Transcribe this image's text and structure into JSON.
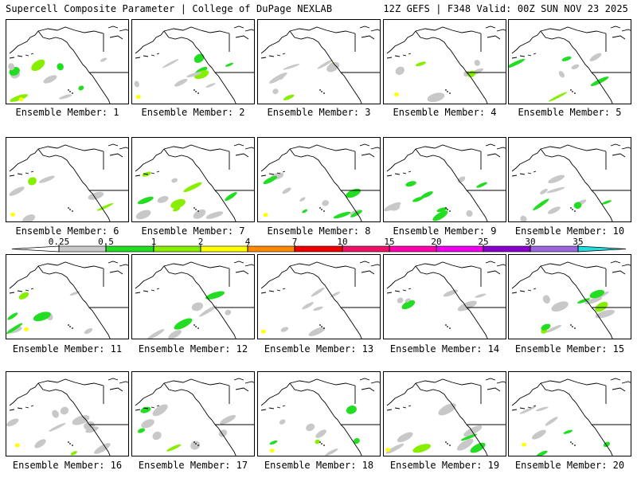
{
  "header": {
    "left_title": "Supercell Composite Parameter | College of DuPage NEXLAB",
    "right_title": "12Z GEFS | F348 Valid: 00Z SUN NOV 23 2025"
  },
  "colorbar": {
    "ticks": [
      "0.25",
      "0.5",
      "1",
      "2",
      "4",
      "7",
      "10",
      "15",
      "20",
      "25",
      "30",
      "35"
    ],
    "colors": [
      "#c8c8c8",
      "#22dd22",
      "#88ee00",
      "#ffff00",
      "#ff8800",
      "#ee0000",
      "#ee1166",
      "#ff00aa",
      "#ee00ee",
      "#8800cc",
      "#9966dd",
      "#22dddd"
    ]
  },
  "members": [
    {
      "label": "Ensemble Member: 1"
    },
    {
      "label": "Ensemble Member: 2"
    },
    {
      "label": "Ensemble Member: 3"
    },
    {
      "label": "Ensemble Member: 4"
    },
    {
      "label": "Ensemble Member: 5"
    },
    {
      "label": "Ensemble Member: 6"
    },
    {
      "label": "Ensemble Member: 7"
    },
    {
      "label": "Ensemble Member: 8"
    },
    {
      "label": "Ensemble Member: 9"
    },
    {
      "label": "Ensemble Member: 10"
    },
    {
      "label": "Ensemble Member: 11"
    },
    {
      "label": "Ensemble Member: 12"
    },
    {
      "label": "Ensemble Member: 13"
    },
    {
      "label": "Ensemble Member: 14"
    },
    {
      "label": "Ensemble Member: 15"
    },
    {
      "label": "Ensemble Member: 16"
    },
    {
      "label": "Ensemble Member: 17"
    },
    {
      "label": "Ensemble Member: 18"
    },
    {
      "label": "Ensemble Member: 19"
    },
    {
      "label": "Ensemble Member: 20"
    }
  ]
}
